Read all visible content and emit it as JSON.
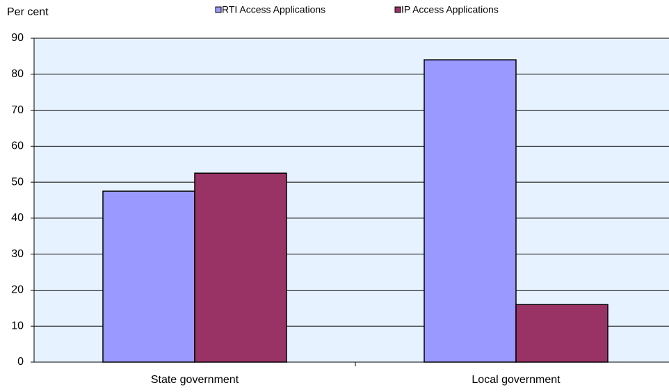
{
  "chart_data": {
    "type": "bar",
    "y_label": "Per cent",
    "categories": [
      "State government",
      "Local government"
    ],
    "series": [
      {
        "name": "RTI Access Applications",
        "color": "#9999ff",
        "values": [
          47.5,
          84
        ]
      },
      {
        "name": "IP Access Applications",
        "color": "#993366",
        "values": [
          52.5,
          16
        ]
      }
    ],
    "ylim": [
      0,
      90
    ],
    "yticks": [
      0,
      10,
      20,
      30,
      40,
      50,
      60,
      70,
      80,
      90
    ],
    "grid": true,
    "legend": "top"
  }
}
